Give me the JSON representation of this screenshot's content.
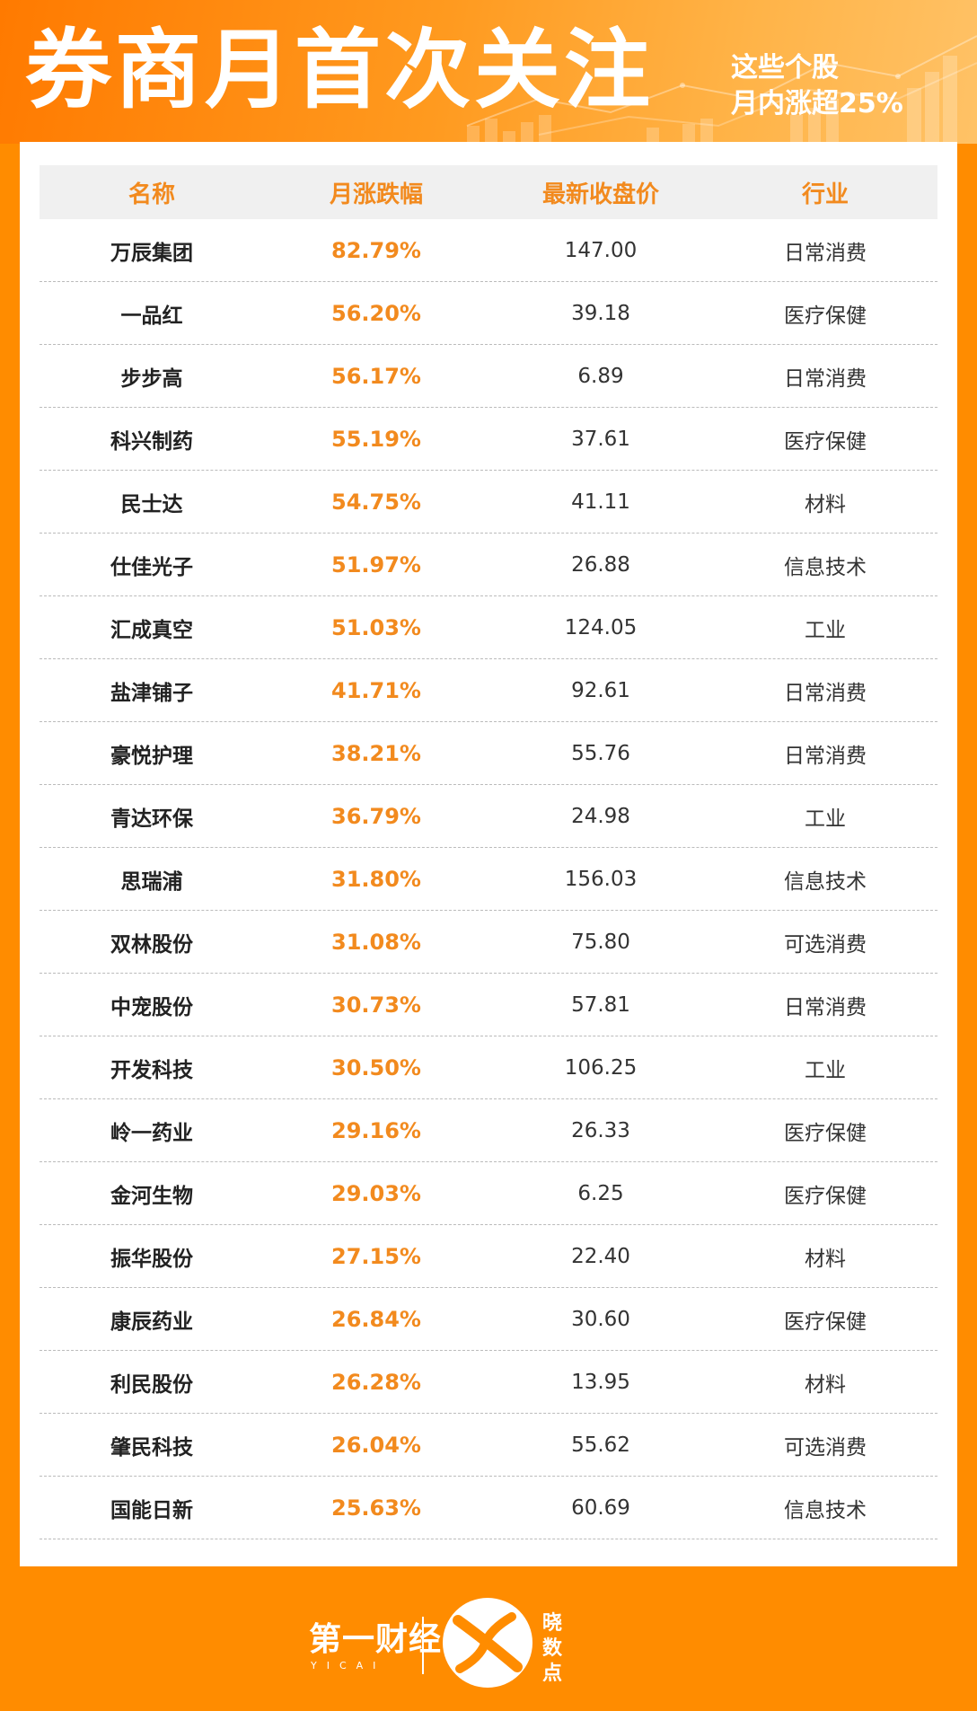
{
  "header": {
    "title": "券商月首次关注",
    "subtitle_line1": "这些个股",
    "subtitle_line2": "月内涨超25%"
  },
  "table": {
    "columns": [
      "名称",
      "月涨跌幅",
      "最新收盘价",
      "行业"
    ],
    "rows": [
      {
        "name": "万辰集团",
        "change": "82.79%",
        "price": "147.00",
        "industry": "日常消费"
      },
      {
        "name": "一品红",
        "change": "56.20%",
        "price": "39.18",
        "industry": "医疗保健"
      },
      {
        "name": "步步高",
        "change": "56.17%",
        "price": "6.89",
        "industry": "日常消费"
      },
      {
        "name": "科兴制药",
        "change": "55.19%",
        "price": "37.61",
        "industry": "医疗保健"
      },
      {
        "name": "民士达",
        "change": "54.75%",
        "price": "41.11",
        "industry": "材料"
      },
      {
        "name": "仕佳光子",
        "change": "51.97%",
        "price": "26.88",
        "industry": "信息技术"
      },
      {
        "name": "汇成真空",
        "change": "51.03%",
        "price": "124.05",
        "industry": "工业"
      },
      {
        "name": "盐津铺子",
        "change": "41.71%",
        "price": "92.61",
        "industry": "日常消费"
      },
      {
        "name": "豪悦护理",
        "change": "38.21%",
        "price": "55.76",
        "industry": "日常消费"
      },
      {
        "name": "青达环保",
        "change": "36.79%",
        "price": "24.98",
        "industry": "工业"
      },
      {
        "name": "思瑞浦",
        "change": "31.80%",
        "price": "156.03",
        "industry": "信息技术"
      },
      {
        "name": "双林股份",
        "change": "31.08%",
        "price": "75.80",
        "industry": "可选消费"
      },
      {
        "name": "中宠股份",
        "change": "30.73%",
        "price": "57.81",
        "industry": "日常消费"
      },
      {
        "name": "开发科技",
        "change": "30.50%",
        "price": "106.25",
        "industry": "工业"
      },
      {
        "name": "岭一药业",
        "change": "29.16%",
        "price": "26.33",
        "industry": "医疗保健"
      },
      {
        "name": "金河生物",
        "change": "29.03%",
        "price": "6.25",
        "industry": "医疗保健"
      },
      {
        "name": "振华股份",
        "change": "27.15%",
        "price": "22.40",
        "industry": "材料"
      },
      {
        "name": "康辰药业",
        "change": "26.84%",
        "price": "30.60",
        "industry": "医疗保健"
      },
      {
        "name": "利民股份",
        "change": "26.28%",
        "price": "13.95",
        "industry": "材料"
      },
      {
        "name": "肇民科技",
        "change": "26.04%",
        "price": "55.62",
        "industry": "可选消费"
      },
      {
        "name": "国能日新",
        "change": "25.63%",
        "price": "60.69",
        "industry": "信息技术"
      }
    ]
  },
  "footer": {
    "brand": "第一财经",
    "brand_sub": "YICAI",
    "logo2_text": "晓数点"
  },
  "colors": {
    "background": "#FF8C00",
    "accent": "#F28A1E",
    "header_row": "#F0F0F0"
  }
}
